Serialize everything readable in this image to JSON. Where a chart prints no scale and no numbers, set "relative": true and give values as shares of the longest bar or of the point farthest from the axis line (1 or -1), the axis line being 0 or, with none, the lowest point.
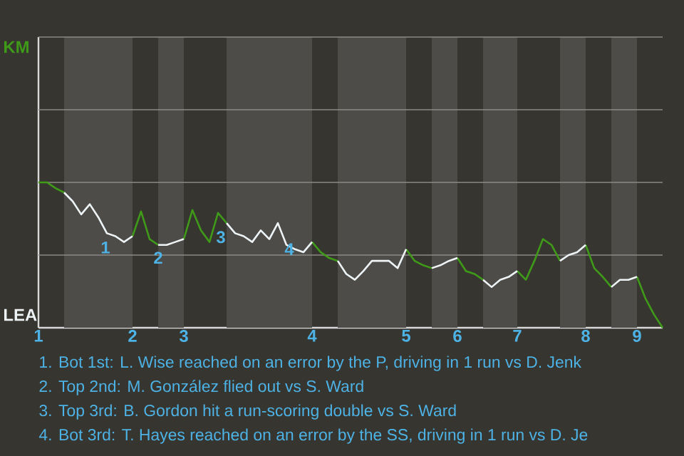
{
  "chart_data": {
    "type": "line",
    "relative": true,
    "categories": [
      "1",
      null,
      null,
      null,
      null,
      null,
      null,
      null,
      null,
      null,
      null,
      "2",
      null,
      null,
      null,
      null,
      null,
      "3",
      null,
      null,
      null,
      null,
      null,
      null,
      null,
      null,
      null,
      null,
      null,
      null,
      null,
      null,
      "4",
      null,
      null,
      null,
      null,
      null,
      null,
      null,
      null,
      null,
      null,
      "5",
      null,
      null,
      null,
      null,
      null,
      "6",
      null,
      null,
      null,
      null,
      null,
      null,
      "7",
      null,
      null,
      null,
      null,
      null,
      null,
      null,
      "8",
      null,
      null,
      null,
      null,
      null,
      "9",
      null,
      null,
      null
    ],
    "ref_lines": [
      {
        "axis": "y",
        "value": 0.5,
        "color": "#8c8a86"
      },
      {
        "axis": "y",
        "value": 1.0,
        "color": "#8c8a86"
      },
      {
        "axis": "y",
        "value": 1.5,
        "color": "#8c8a86"
      },
      {
        "axis": "y",
        "value": 2.0,
        "color": "#8c8a86"
      }
    ],
    "series": [
      {
        "color": "#3f9a1a",
        "values": [
          1,
          1,
          0.96,
          0.93,
          null,
          null,
          null,
          null,
          null,
          null,
          null,
          0.63,
          0.8,
          0.61,
          0.57,
          null,
          null,
          0.61,
          0.81,
          0.67,
          0.59,
          0.79,
          0.72,
          null,
          null,
          null,
          null,
          null,
          null,
          null,
          null,
          null,
          0.59,
          0.52,
          0.48,
          0.46,
          null,
          null,
          null,
          null,
          null,
          null,
          null,
          0.54,
          0.46,
          0.43,
          0.41,
          null,
          null,
          0.48,
          0.39,
          0.37,
          0.33,
          null,
          null,
          null,
          0.39,
          0.33,
          0.46,
          0.61,
          0.57,
          0.46,
          null,
          null,
          0.57,
          0.41,
          0.35,
          0.28,
          null,
          null,
          0.35,
          0.2,
          0.09,
          0
        ]
      },
      {
        "color": "#eef4f6",
        "values": [
          null,
          null,
          null,
          0.93,
          0.87,
          0.78,
          0.85,
          0.76,
          0.65,
          0.63,
          0.59,
          0.63,
          null,
          null,
          0.57,
          0.57,
          0.59,
          0.61,
          null,
          null,
          null,
          null,
          0.72,
          0.65,
          0.63,
          0.59,
          0.67,
          0.61,
          0.72,
          0.57,
          0.54,
          0.52,
          0.59,
          null,
          null,
          0.46,
          0.37,
          0.33,
          0.39,
          0.46,
          0.46,
          0.46,
          0.41,
          0.54,
          null,
          null,
          0.41,
          0.43,
          0.46,
          0.48,
          null,
          null,
          0.33,
          0.28,
          0.33,
          0.35,
          0.39,
          null,
          null,
          null,
          null,
          0.46,
          0.5,
          0.52,
          0.57,
          null,
          null,
          0.28,
          0.33,
          0.33,
          0.35,
          null,
          null,
          null
        ]
      }
    ],
    "annotations": [
      "KM",
      "LEA",
      "1",
      "2",
      "3",
      "4",
      "1. Bot 1st: L. Wise reached on an error by the P, driving in 1 run vs D. Jenk",
      "2. Top 2nd: M. González flied out vs S. Ward",
      "3. Top 3rd: B. Gordon hit a run-scoring double vs S. Ward",
      "4. Bot 3rd: T. Hayes reached on an error by the SS, driving in 1 run vs D. Je"
    ]
  }
}
